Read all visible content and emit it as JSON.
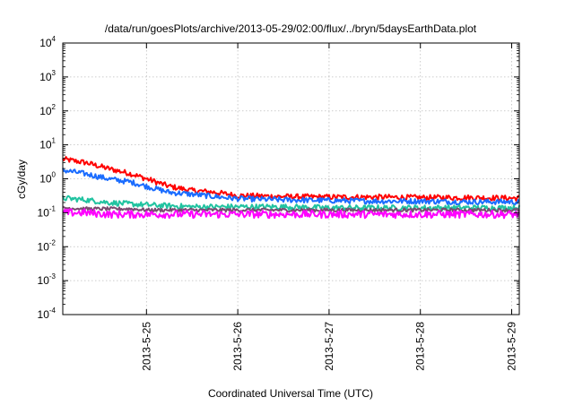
{
  "chart_data": {
    "type": "line",
    "title": "/data/run/goesPlots/archive/2013-05-29/02:00/flux/../bryn/5daysEarthData.plot",
    "xlabel": "Coordinated Universal Time (UTC)",
    "ylabel": "cGy/day",
    "yscale": "log",
    "ylim": [
      0.0001,
      10000
    ],
    "xlim": [
      "2013-05-24 02:00",
      "2013-05-29 02:00"
    ],
    "grid": true,
    "y_ticks": [
      {
        "value": 0.0001,
        "base": "10",
        "exp": "-4"
      },
      {
        "value": 0.001,
        "base": "10",
        "exp": "-3"
      },
      {
        "value": 0.01,
        "base": "10",
        "exp": "-2"
      },
      {
        "value": 0.1,
        "base": "10",
        "exp": "-1"
      },
      {
        "value": 1,
        "base": "10",
        "exp": "0"
      },
      {
        "value": 10,
        "base": "10",
        "exp": "1"
      },
      {
        "value": 100,
        "base": "10",
        "exp": "2"
      },
      {
        "value": 1000,
        "base": "10",
        "exp": "3"
      },
      {
        "value": 10000,
        "base": "10",
        "exp": "4"
      }
    ],
    "x_ticks": [
      {
        "value": "2013-05-25 00:00",
        "label": "2013-5-25"
      },
      {
        "value": "2013-05-26 00:00",
        "label": "2013-5-26"
      },
      {
        "value": "2013-05-27 00:00",
        "label": "2013-5-27"
      },
      {
        "value": "2013-05-28 00:00",
        "label": "2013-5-28"
      },
      {
        "value": "2013-05-29 00:00",
        "label": "2013-5-29"
      }
    ],
    "x": [
      "2013-05-24 02:00",
      "2013-05-24 08:00",
      "2013-05-24 14:00",
      "2013-05-24 20:00",
      "2013-05-25 00:00",
      "2013-05-25 06:00",
      "2013-05-25 12:00",
      "2013-05-25 18:00",
      "2013-05-26 00:00",
      "2013-05-26 12:00",
      "2013-05-27 00:00",
      "2013-05-27 12:00",
      "2013-05-28 00:00",
      "2013-05-28 12:00",
      "2013-05-29 00:00",
      "2013-05-29 02:00"
    ],
    "series": [
      {
        "color": "#ff0000",
        "values": [
          3.8,
          3.0,
          2.0,
          1.4,
          1.0,
          0.6,
          0.45,
          0.4,
          0.32,
          0.3,
          0.29,
          0.29,
          0.28,
          0.28,
          0.27,
          0.27
        ]
      },
      {
        "color": "#1a6cff",
        "values": [
          1.8,
          1.4,
          1.0,
          0.8,
          0.6,
          0.4,
          0.35,
          0.3,
          0.26,
          0.24,
          0.23,
          0.22,
          0.22,
          0.21,
          0.21,
          0.2
        ]
      },
      {
        "color": "#20c3a0",
        "values": [
          0.27,
          0.24,
          0.2,
          0.18,
          0.17,
          0.16,
          0.15,
          0.15,
          0.15,
          0.15,
          0.14,
          0.14,
          0.14,
          0.14,
          0.14,
          0.14
        ]
      },
      {
        "color": "#7a4a70",
        "values": [
          0.14,
          0.13,
          0.13,
          0.13,
          0.12,
          0.12,
          0.12,
          0.12,
          0.12,
          0.12,
          0.12,
          0.12,
          0.12,
          0.12,
          0.12,
          0.12
        ]
      },
      {
        "color": "#ff00ff",
        "values": [
          0.1,
          0.1,
          0.09,
          0.09,
          0.09,
          0.09,
          0.09,
          0.09,
          0.09,
          0.09,
          0.09,
          0.09,
          0.09,
          0.09,
          0.09,
          0.09
        ]
      }
    ]
  }
}
